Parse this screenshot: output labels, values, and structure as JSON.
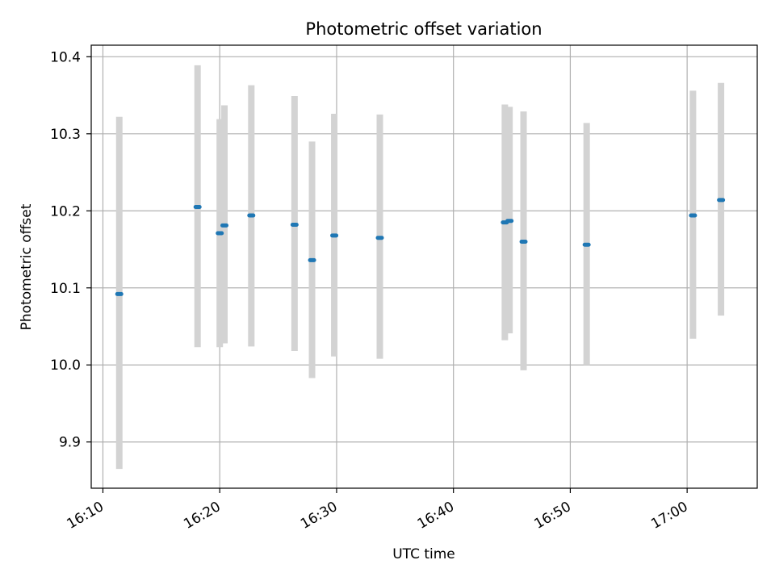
{
  "chart_data": {
    "type": "scatter",
    "title": "Photometric offset variation",
    "xlabel": "UTC time",
    "ylabel": "Photometric offset",
    "xlim": [
      "16:09",
      "17:06"
    ],
    "ylim": [
      9.84,
      10.415
    ],
    "grid": true,
    "legend": "none",
    "x_ticks": [
      "16:10",
      "16:20",
      "16:30",
      "16:40",
      "16:50",
      "17:00"
    ],
    "y_ticks": [
      "9.9",
      "10.0",
      "10.1",
      "10.2",
      "10.3",
      "10.4"
    ],
    "colors": {
      "marker": "#1f77b4",
      "errorbar": "#d3d3d3",
      "grid": "#b0b0b0"
    },
    "series": [
      {
        "points": [
          {
            "time": "16:11:24",
            "y": 10.092,
            "y_low": 9.865,
            "y_high": 10.322
          },
          {
            "time": "16:18:06",
            "y": 10.205,
            "y_low": 10.023,
            "y_high": 10.389
          },
          {
            "time": "16:19:60",
            "y": 10.171,
            "y_low": 10.023,
            "y_high": 10.319
          },
          {
            "time": "16:20:24",
            "y": 10.181,
            "y_low": 10.028,
            "y_high": 10.337
          },
          {
            "time": "16:22:42",
            "y": 10.194,
            "y_low": 10.024,
            "y_high": 10.363
          },
          {
            "time": "16:26:24",
            "y": 10.182,
            "y_low": 10.018,
            "y_high": 10.349
          },
          {
            "time": "16:27:54",
            "y": 10.136,
            "y_low": 9.983,
            "y_high": 10.29
          },
          {
            "time": "16:29:48",
            "y": 10.168,
            "y_low": 10.011,
            "y_high": 10.326
          },
          {
            "time": "16:33:42",
            "y": 10.165,
            "y_low": 10.008,
            "y_high": 10.325
          },
          {
            "time": "16:44:24",
            "y": 10.185,
            "y_low": 10.032,
            "y_high": 10.338
          },
          {
            "time": "16:44:48",
            "y": 10.187,
            "y_low": 10.041,
            "y_high": 10.335
          },
          {
            "time": "16:46:00",
            "y": 10.16,
            "y_low": 9.993,
            "y_high": 10.329
          },
          {
            "time": "16:51:24",
            "y": 10.156,
            "y_low": 10.0,
            "y_high": 10.314
          },
          {
            "time": "17:00:30",
            "y": 10.194,
            "y_low": 10.034,
            "y_high": 10.356
          },
          {
            "time": "17:02:54",
            "y": 10.214,
            "y_low": 10.064,
            "y_high": 10.366
          }
        ]
      }
    ]
  }
}
